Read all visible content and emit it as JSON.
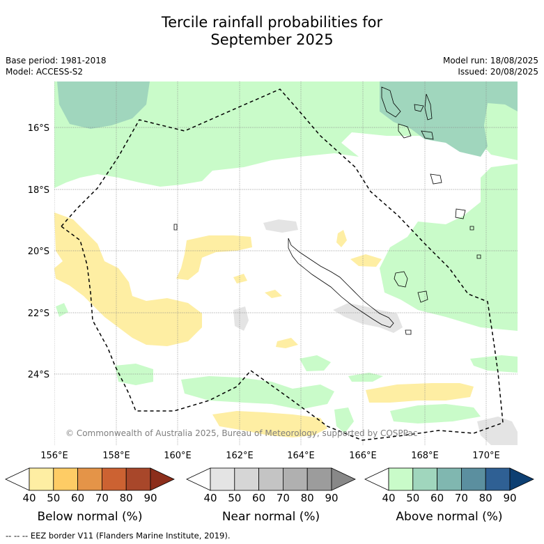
{
  "title_line1": "Tercile rainfall probabilities for",
  "title_line2": "September 2025",
  "base_period": "Base period: 1981-2018",
  "model": "Model: ACCESS-S2",
  "model_run": "Model run: 18/08/2025",
  "issued": "Issued: 20/08/2025",
  "copyright": "© Commonwealth of Australia 2025, Bureau of Meteorology, supported by COSPPac",
  "map": {
    "lat_labels": [
      "16°S",
      "18°S",
      "20°S",
      "22°S",
      "24°S"
    ],
    "lon_labels": [
      "156°E",
      "158°E",
      "160°E",
      "162°E",
      "164°E",
      "166°E",
      "168°E",
      "170°E"
    ],
    "colors": {
      "above_50": "#c9fbc9",
      "above_60": "#a0d6bd",
      "near_50": "#e4e4e4",
      "below_50": "#feeea3",
      "land_outline": "#000000",
      "eez_border": "#000000"
    }
  },
  "colorbars": [
    {
      "label": "Below normal (%)",
      "ticks": [
        "40",
        "50",
        "60",
        "70",
        "80",
        "90"
      ],
      "colors": [
        "#ffffff",
        "#feeea3",
        "#fecc65",
        "#e49448",
        "#cc6232",
        "#a8472a",
        "#8c2e1b"
      ]
    },
    {
      "label": "Near normal (%)",
      "ticks": [
        "40",
        "50",
        "60",
        "70",
        "80",
        "90"
      ],
      "colors": [
        "#ffffff",
        "#e4e4e4",
        "#d6d6d6",
        "#c4c4c4",
        "#b0b0b0",
        "#9c9c9c",
        "#888888"
      ]
    },
    {
      "label": "Above normal (%)",
      "ticks": [
        "40",
        "50",
        "60",
        "70",
        "80",
        "90"
      ],
      "colors": [
        "#ffffff",
        "#c9fbc9",
        "#a0d6bd",
        "#80b7b0",
        "#5b8f9f",
        "#2f6094",
        "#0d3f72"
      ]
    }
  ],
  "footer": "-- -- -- EEZ border V11 (Flanders Marine Institute, 2019)."
}
